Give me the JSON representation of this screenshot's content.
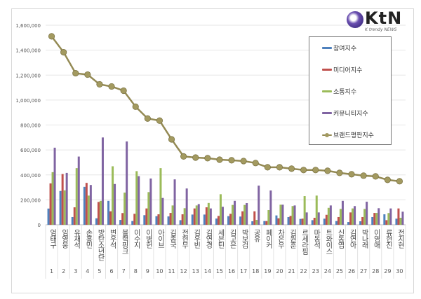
{
  "logo": {
    "text": "KtN",
    "subtitle": "K trendy NEWS"
  },
  "chart_data": {
    "type": "bar",
    "categories": [
      "엄태구",
      "임영웅",
      "유재석",
      "손흥민",
      "방탄소년단",
      "변우석",
      "블랙핑크",
      "이수지",
      "이병헌",
      "아이브",
      "김종국",
      "전현무",
      "김우빈",
      "김연경",
      "세븐틴",
      "김고은",
      "박보검",
      "공유",
      "페이커",
      "차은우",
      "김원훈",
      "르세라핌",
      "마동석",
      "트와이스",
      "신동엽",
      "김연아",
      "박나래",
      "이영애",
      "류현진",
      "전지현"
    ],
    "ranks": [
      "1",
      "2",
      "3",
      "4",
      "5",
      "6",
      "7",
      "8",
      "9",
      "10",
      "11",
      "12",
      "13",
      "14",
      "15",
      "16",
      "17",
      "18",
      "19",
      "20",
      "21",
      "22",
      "23",
      "24",
      "25",
      "26",
      "27",
      "28",
      "29",
      "30"
    ],
    "ylim": [
      0,
      1600000
    ],
    "yticks": [
      "0",
      "200,000",
      "400,000",
      "600,000",
      "800,000",
      "1,000,000",
      "1,200,000",
      "1,400,000",
      "1,600,000"
    ],
    "grid": true,
    "legend_position": "right",
    "series": [
      {
        "name": "참여지수",
        "kind": "bar",
        "color": "#4f81bd",
        "values": [
          130000,
          271000,
          62000,
          304000,
          52000,
          192000,
          39000,
          30000,
          77000,
          69000,
          67000,
          37000,
          82000,
          82000,
          50000,
          69000,
          66000,
          28000,
          30000,
          75000,
          62000,
          47000,
          37000,
          49000,
          30000,
          22000,
          28000,
          62000,
          84000,
          49000
        ]
      },
      {
        "name": "미디어지수",
        "kind": "bar",
        "color": "#c0504d",
        "values": [
          332000,
          407000,
          140000,
          336000,
          183000,
          108000,
          94000,
          88000,
          131000,
          84000,
          95000,
          84000,
          131000,
          140000,
          71000,
          88000,
          108000,
          108000,
          30000,
          52000,
          71000,
          49000,
          56000,
          80000,
          62000,
          99000,
          62000,
          95000,
          37000,
          131000
        ]
      },
      {
        "name": "소통지수",
        "kind": "bar",
        "color": "#9bbb59",
        "values": [
          422000,
          276000,
          454000,
          234000,
          192000,
          469000,
          258000,
          430000,
          262000,
          454000,
          155000,
          133000,
          155000,
          175000,
          245000,
          159000,
          159000,
          39000,
          118000,
          161000,
          150000,
          230000,
          234000,
          136000,
          127000,
          131000,
          127000,
          95000,
          94000,
          56000
        ]
      },
      {
        "name": "커뮤니티지수",
        "kind": "bar",
        "color": "#8064a2",
        "values": [
          618000,
          416000,
          547000,
          319000,
          700000,
          327000,
          668000,
          390000,
          371000,
          215000,
          364000,
          291000,
          166000,
          131000,
          144000,
          192000,
          174000,
          314000,
          275000,
          161000,
          155000,
          99000,
          99000,
          155000,
          192000,
          150000,
          185000,
          133000,
          131000,
          105000
        ]
      },
      {
        "name": "브랜드평판지수",
        "kind": "line",
        "color": "#948a54",
        "values": [
          1511000,
          1383000,
          1215000,
          1204000,
          1126000,
          1109000,
          1075000,
          947000,
          852000,
          835000,
          685000,
          548000,
          539000,
          534000,
          522000,
          517000,
          511000,
          495000,
          461000,
          461000,
          450000,
          439000,
          439000,
          433000,
          416000,
          405000,
          394000,
          388000,
          360000,
          349000
        ]
      }
    ]
  }
}
